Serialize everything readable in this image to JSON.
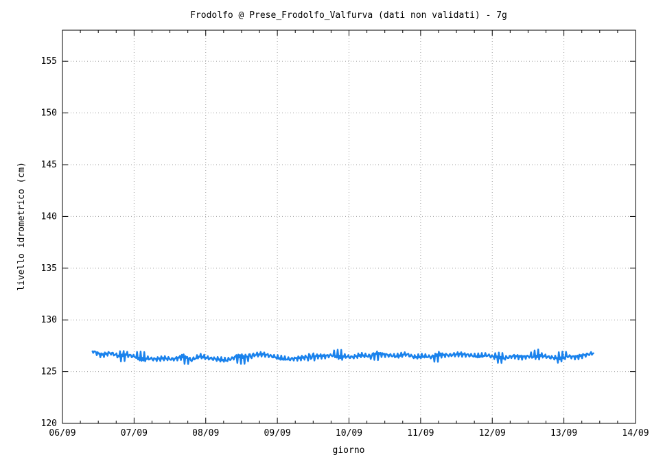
{
  "chart_data": {
    "type": "line",
    "title": "Frodolfo @ Prese_Frodolfo_Valfurva (dati non validati) - 7g",
    "xlabel": "giorno",
    "ylabel": "livello idrometrico (cm)",
    "x_tick_labels": [
      "06/09",
      "07/09",
      "08/09",
      "09/09",
      "10/09",
      "11/09",
      "12/09",
      "13/09",
      "14/09"
    ],
    "y_ticks": [
      120,
      125,
      130,
      135,
      140,
      145,
      150,
      155
    ],
    "xlim": [
      "06/09",
      "14/09"
    ],
    "ylim": [
      120,
      158
    ],
    "grid": true,
    "series": [
      {
        "color": "#1a82ec",
        "x": [
          "06/09 10:00",
          "06/09 13:00",
          "06/09 16:00",
          "06/09 19:00",
          "06/09 22:00",
          "07/09 01:00",
          "07/09 04:00",
          "07/09 07:00",
          "07/09 10:00",
          "07/09 13:00",
          "07/09 16:00",
          "07/09 19:00",
          "07/09 22:00",
          "08/09 01:00",
          "08/09 04:00",
          "08/09 07:00",
          "08/09 10:00",
          "08/09 13:00",
          "08/09 16:00",
          "08/09 19:00",
          "08/09 22:00",
          "09/09 01:00",
          "09/09 04:00",
          "09/09 07:00",
          "09/09 10:00",
          "09/09 13:00",
          "09/09 16:00",
          "09/09 19:00",
          "09/09 22:00",
          "10/09 01:00",
          "10/09 04:00",
          "10/09 07:00",
          "10/09 10:00",
          "10/09 13:00",
          "10/09 16:00",
          "10/09 19:00",
          "10/09 22:00",
          "11/09 01:00",
          "11/09 04:00",
          "11/09 07:00",
          "11/09 10:00",
          "11/09 13:00",
          "11/09 16:00",
          "11/09 19:00",
          "11/09 22:00",
          "12/09 01:00",
          "12/09 04:00",
          "12/09 07:00",
          "12/09 10:00",
          "12/09 13:00",
          "12/09 16:00",
          "12/09 19:00",
          "12/09 22:00",
          "13/09 01:00",
          "13/09 04:00",
          "13/09 07:00",
          "13/09 10:00"
        ],
        "values": [
          127.0,
          126.6,
          126.8,
          126.5,
          126.6,
          126.4,
          126.3,
          126.2,
          126.3,
          126.2,
          126.4,
          126.1,
          126.5,
          126.3,
          126.2,
          126.1,
          126.4,
          126.3,
          126.6,
          126.7,
          126.5,
          126.3,
          126.2,
          126.3,
          126.4,
          126.5,
          126.5,
          126.6,
          126.5,
          126.4,
          126.6,
          126.5,
          126.7,
          126.6,
          126.5,
          126.7,
          126.4,
          126.5,
          126.4,
          126.6,
          126.6,
          126.7,
          126.6,
          126.5,
          126.6,
          126.4,
          126.3,
          126.5,
          126.4,
          126.5,
          126.6,
          126.4,
          126.3,
          126.5,
          126.4,
          126.6,
          126.8
        ]
      }
    ]
  }
}
